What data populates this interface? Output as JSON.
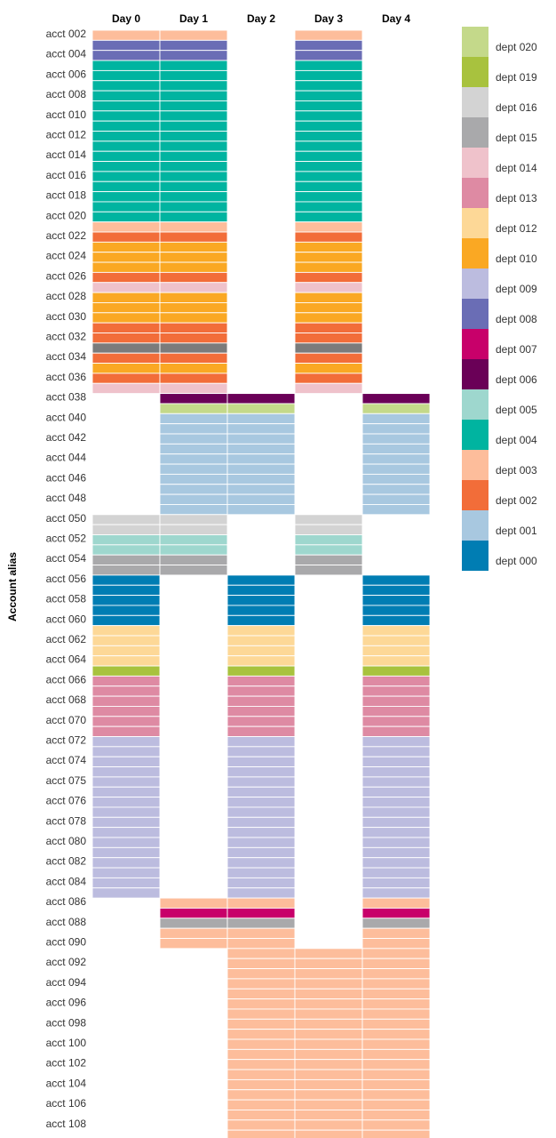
{
  "chart_data": {
    "type": "heatmap",
    "ylabel": "Account alias",
    "columns": [
      "Day 0",
      "Day 1",
      "Day 2",
      "Day 3",
      "Day 4"
    ],
    "legend": {
      "placement": "right",
      "entries": [
        {
          "key": "dept 020",
          "label": "dept 020",
          "color": "#c4d98a"
        },
        {
          "key": "dept 019",
          "label": "dept 019",
          "color": "#a8c23e"
        },
        {
          "key": "dept 016",
          "label": "dept 016",
          "color": "#d3d3d3"
        },
        {
          "key": "dept 015",
          "label": "dept 015",
          "color": "#a9a9ab"
        },
        {
          "key": "dept 014",
          "label": "dept 014",
          "color": "#efc2cb"
        },
        {
          "key": "dept 013",
          "label": "dept 013",
          "color": "#de8aa3"
        },
        {
          "key": "dept 012",
          "label": "dept 012",
          "color": "#fdd897"
        },
        {
          "key": "dept 010",
          "label": "dept 010",
          "color": "#faa823"
        },
        {
          "key": "dept 009",
          "label": "dept 009",
          "color": "#bcbcdf"
        },
        {
          "key": "dept 008",
          "label": "dept 008",
          "color": "#6a6db5"
        },
        {
          "key": "dept 007",
          "label": "dept 007",
          "color": "#c8006a"
        },
        {
          "key": "dept 006",
          "label": "dept 006",
          "color": "#6a0057"
        },
        {
          "key": "dept 005",
          "label": "dept 005",
          "color": "#9ed7ce"
        },
        {
          "key": "dept 004",
          "label": "dept 004",
          "color": "#00b4a0"
        },
        {
          "key": "dept 003",
          "label": "dept 003",
          "color": "#fdbd9b"
        },
        {
          "key": "dept 002",
          "label": "dept 002",
          "color": "#f26d39"
        },
        {
          "key": "dept 001",
          "label": "dept 001",
          "color": "#a8c8e0"
        },
        {
          "key": "dept 000",
          "label": "dept 000",
          "color": "#007db3"
        },
        {
          "key": "dept 011",
          "label": "",
          "color": "#7b7b7b"
        }
      ]
    },
    "tick_labels": [
      "acct 002",
      "acct 004",
      "acct 006",
      "acct 008",
      "acct 010",
      "acct 012",
      "acct 014",
      "acct 016",
      "acct 018",
      "acct 020",
      "acct 022",
      "acct 024",
      "acct 026",
      "acct 028",
      "acct 030",
      "acct 032",
      "acct 034",
      "acct 036",
      "acct 038",
      "acct 040",
      "acct 042",
      "acct 044",
      "acct 046",
      "acct 048",
      "acct 050",
      "acct 052",
      "acct 054",
      "acct 056",
      "acct 058",
      "acct 060",
      "acct 062",
      "acct 064",
      "acct 066",
      "acct 068",
      "acct 070",
      "acct 072",
      "acct 074",
      "acct 075",
      "acct 076",
      "acct 078",
      "acct 080",
      "acct 082",
      "acct 084",
      "acct 086",
      "acct 088",
      "acct 090",
      "acct 092",
      "acct 094",
      "acct 096",
      "acct 098",
      "acct 100",
      "acct 102",
      "acct 104",
      "acct 106",
      "acct 108"
    ],
    "blocks": [
      {
        "dept": "dept 003",
        "rows": 1,
        "days": [
          0,
          1,
          3
        ]
      },
      {
        "dept": "dept 008",
        "rows": 2,
        "days": [
          0,
          1,
          3
        ]
      },
      {
        "dept": "dept 004",
        "rows": 16,
        "days": [
          0,
          1,
          3
        ]
      },
      {
        "dept": "dept 003",
        "rows": 1,
        "days": [
          0,
          1,
          3
        ]
      },
      {
        "dept": "dept 002",
        "rows": 1,
        "days": [
          0,
          1,
          3
        ]
      },
      {
        "dept": "dept 010",
        "rows": 3,
        "days": [
          0,
          1,
          3
        ]
      },
      {
        "dept": "dept 002",
        "rows": 1,
        "days": [
          0,
          1,
          3
        ]
      },
      {
        "dept": "dept 014",
        "rows": 1,
        "days": [
          0,
          1,
          3
        ]
      },
      {
        "dept": "dept 010",
        "rows": 3,
        "days": [
          0,
          1,
          3
        ]
      },
      {
        "dept": "dept 002",
        "rows": 2,
        "days": [
          0,
          1,
          3
        ]
      },
      {
        "dept": "dept 011",
        "rows": 1,
        "days": [
          0,
          1,
          3
        ]
      },
      {
        "dept": "dept 002",
        "rows": 1,
        "days": [
          0,
          1,
          3
        ]
      },
      {
        "dept": "dept 010",
        "rows": 1,
        "days": [
          0,
          1,
          3
        ]
      },
      {
        "dept": "dept 002",
        "rows": 1,
        "days": [
          0,
          1,
          3
        ]
      },
      {
        "dept": "dept 014",
        "rows": 1,
        "days": [
          0,
          1,
          3
        ]
      },
      {
        "dept": "dept 006",
        "rows": 1,
        "days": [
          1,
          2,
          4
        ]
      },
      {
        "dept": "dept 020",
        "rows": 1,
        "days": [
          1,
          2,
          4
        ]
      },
      {
        "dept": "dept 001",
        "rows": 10,
        "days": [
          1,
          2,
          4
        ]
      },
      {
        "dept": "dept 016",
        "rows": 2,
        "days": [
          0,
          1,
          3
        ]
      },
      {
        "dept": "dept 005",
        "rows": 2,
        "days": [
          0,
          1,
          3
        ]
      },
      {
        "dept": "dept 015",
        "rows": 2,
        "days": [
          0,
          1,
          3
        ]
      },
      {
        "dept": "dept 000",
        "rows": 5,
        "days": [
          0,
          2,
          4
        ]
      },
      {
        "dept": "dept 012",
        "rows": 4,
        "days": [
          0,
          2,
          4
        ]
      },
      {
        "dept": "dept 019",
        "rows": 1,
        "days": [
          0,
          2,
          4
        ]
      },
      {
        "dept": "dept 013",
        "rows": 6,
        "days": [
          0,
          2,
          4
        ]
      },
      {
        "dept": "dept 009",
        "rows": 16,
        "days": [
          0,
          2,
          4
        ]
      },
      {
        "dept": "dept 003",
        "rows": 1,
        "days": [
          1,
          2,
          4
        ]
      },
      {
        "dept": "dept 007",
        "rows": 1,
        "days": [
          1,
          2,
          4
        ]
      },
      {
        "dept": "dept 015",
        "rows": 1,
        "days": [
          1,
          2,
          4
        ]
      },
      {
        "dept": "dept 003",
        "rows": 2,
        "days": [
          1,
          2,
          4
        ]
      },
      {
        "dept": "dept 003",
        "rows": 19,
        "days": [
          2,
          3,
          4
        ]
      }
    ]
  }
}
